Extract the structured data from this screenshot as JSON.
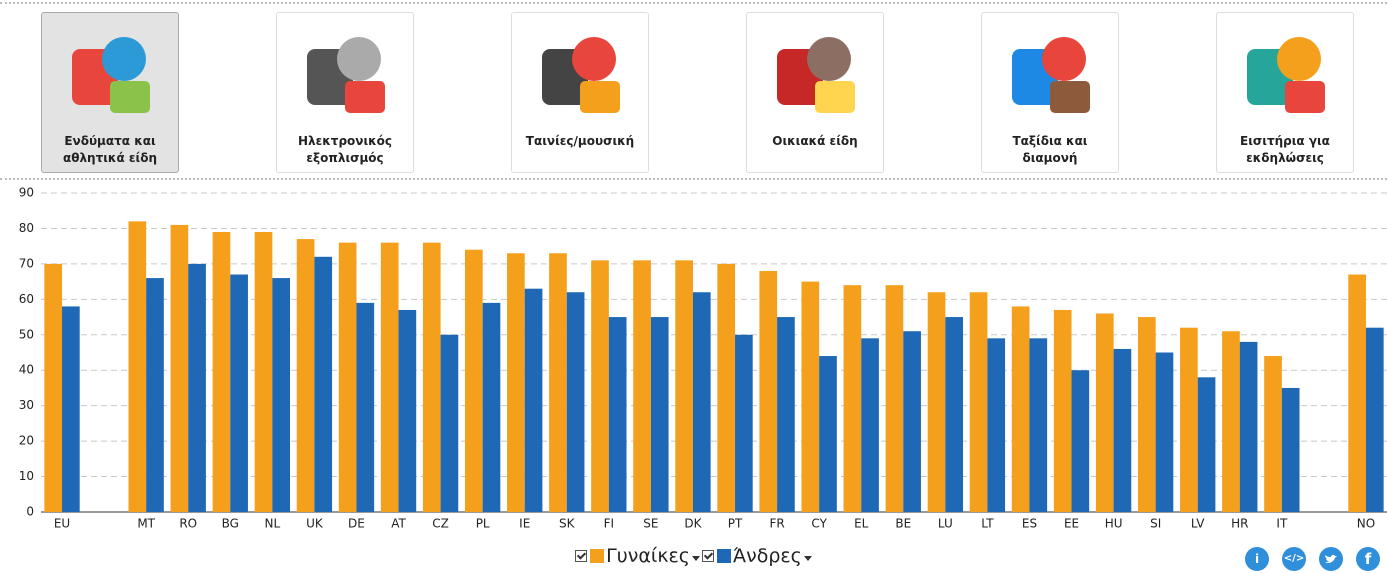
{
  "tabs": [
    {
      "lines": [
        "Ενδύματα και",
        "αθλητικά είδη"
      ]
    },
    {
      "lines": [
        "Ηλεκτρονικός",
        "εξοπλισμός"
      ]
    },
    {
      "lines": [
        "Ταινίες/μουσική"
      ]
    },
    {
      "lines": [
        "Οικιακά είδη"
      ]
    },
    {
      "lines": [
        "Ταξίδια και",
        "διαμονή"
      ]
    },
    {
      "lines": [
        "Εισιτήρια για",
        "εκδηλώσεις"
      ]
    }
  ],
  "share_buttons": {
    "info": "i",
    "embed": "</>",
    "facebook": "f"
  },
  "chart_data": {
    "type": "bar",
    "categories": [
      "EU",
      null,
      "MT",
      "RO",
      "BG",
      "NL",
      "UK",
      "DE",
      "AT",
      "CZ",
      "PL",
      "IE",
      "SK",
      "FI",
      "SE",
      "DK",
      "PT",
      "FR",
      "CY",
      "EL",
      "BE",
      "LU",
      "LT",
      "ES",
      "EE",
      "HU",
      "SI",
      "LV",
      "HR",
      "IT",
      null,
      "NO"
    ],
    "series": [
      {
        "name": "Γυναίκες",
        "color": "#f5a01c",
        "values": [
          70,
          null,
          82,
          81,
          79,
          79,
          77,
          76,
          76,
          76,
          74,
          73,
          73,
          71,
          71,
          71,
          70,
          68,
          65,
          64,
          64,
          62,
          62,
          58,
          57,
          56,
          55,
          52,
          51,
          44,
          null,
          67
        ]
      },
      {
        "name": "Άνδρες",
        "color": "#1f68b5",
        "values": [
          58,
          null,
          66,
          70,
          67,
          66,
          72,
          59,
          57,
          50,
          59,
          63,
          62,
          55,
          55,
          62,
          50,
          55,
          44,
          49,
          51,
          55,
          49,
          49,
          40,
          46,
          45,
          38,
          48,
          35,
          null,
          52
        ]
      }
    ],
    "ylim": [
      0,
      90
    ],
    "yticks": [
      0,
      10,
      20,
      30,
      40,
      50,
      60,
      70,
      80,
      90
    ],
    "grid": true
  }
}
